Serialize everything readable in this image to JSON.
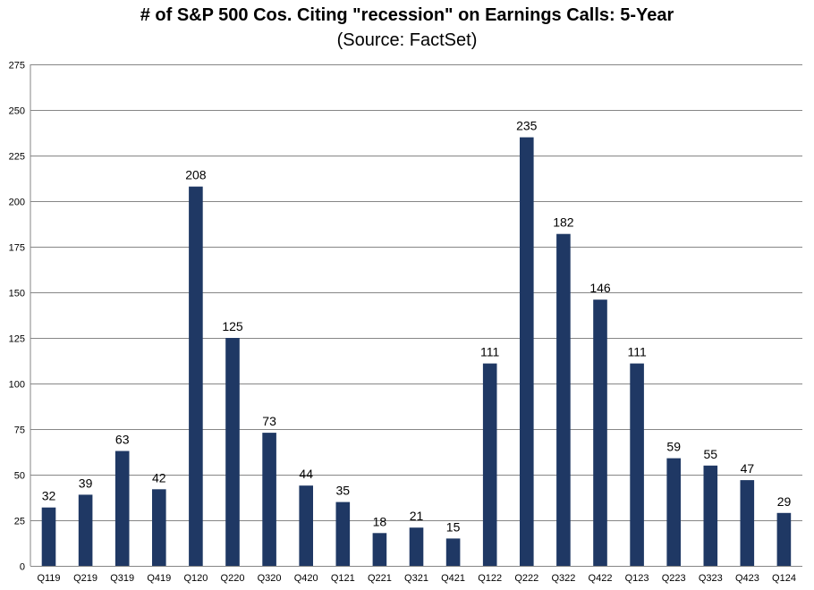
{
  "chart_data": {
    "type": "bar",
    "title": "# of S&P 500 Cos. Citing \"recession\" on Earnings Calls: 5-Year",
    "subtitle": "(Source: FactSet)",
    "categories": [
      "Q119",
      "Q219",
      "Q319",
      "Q419",
      "Q120",
      "Q220",
      "Q320",
      "Q420",
      "Q121",
      "Q221",
      "Q321",
      "Q421",
      "Q122",
      "Q222",
      "Q322",
      "Q422",
      "Q123",
      "Q223",
      "Q323",
      "Q423",
      "Q124"
    ],
    "values": [
      32,
      39,
      63,
      42,
      208,
      125,
      73,
      44,
      35,
      18,
      21,
      15,
      111,
      235,
      182,
      146,
      111,
      59,
      55,
      47,
      29
    ],
    "ylim": [
      0,
      275
    ],
    "yticks": [
      0,
      25,
      50,
      75,
      100,
      125,
      150,
      175,
      200,
      225,
      250,
      275
    ],
    "grid": true,
    "bar_color": "#1f3864"
  }
}
